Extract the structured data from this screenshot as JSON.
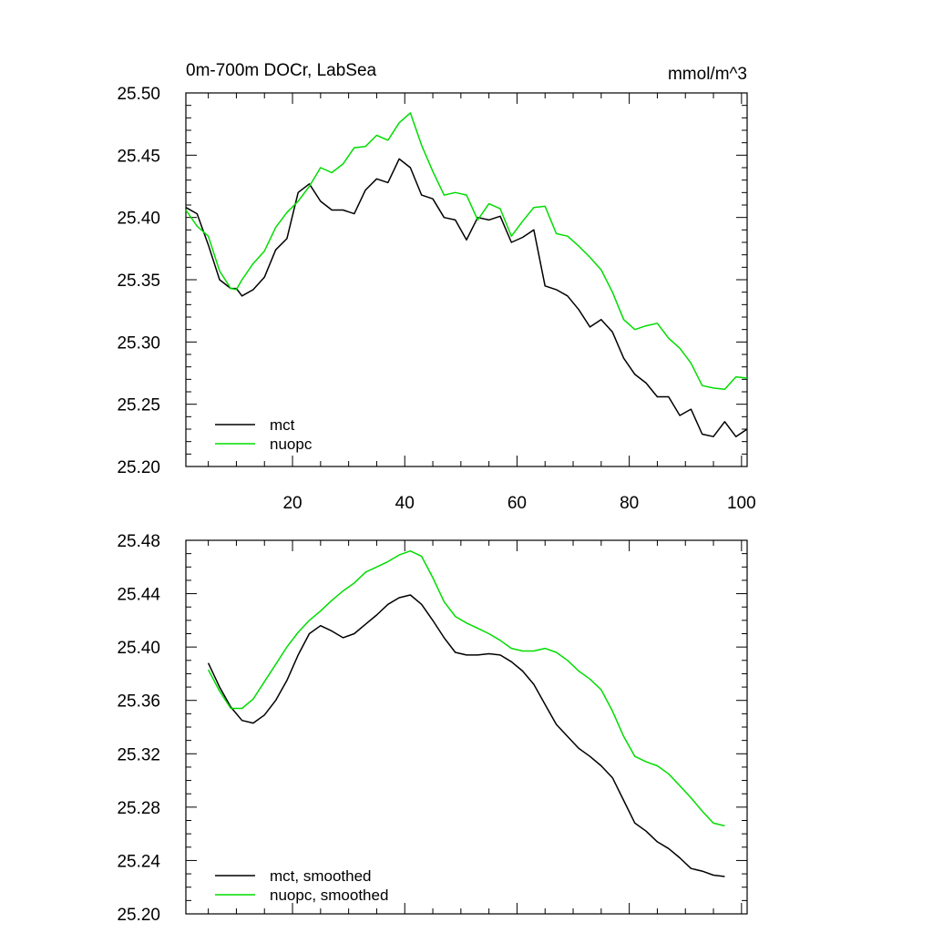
{
  "chart_data": [
    {
      "type": "line",
      "title": "0m-700m DOCr, LabSea",
      "units": "mmol/m^3",
      "xlabel": "",
      "ylabel": "",
      "xlim": [
        1,
        101
      ],
      "ylim": [
        25.2,
        25.5
      ],
      "x_ticks": [
        20,
        40,
        60,
        80,
        100
      ],
      "y_ticks": [
        25.2,
        25.25,
        25.3,
        25.35,
        25.4,
        25.45,
        25.5
      ],
      "y_tick_labels": [
        "25.20",
        "25.25",
        "25.30",
        "25.35",
        "25.40",
        "25.45",
        "25.50"
      ],
      "x_tick_labels": [
        "20",
        "40",
        "60",
        "80",
        "100"
      ],
      "legend_position": "bottom-left",
      "series": [
        {
          "name": "mct",
          "color": "#000000",
          "x": [
            1,
            3,
            5,
            7,
            9,
            10,
            11,
            13,
            15,
            17,
            19,
            21,
            23,
            25,
            27,
            29,
            31,
            33,
            35,
            37,
            39,
            41,
            43,
            45,
            47,
            49,
            51,
            53,
            55,
            57,
            59,
            61,
            63,
            65,
            67,
            69,
            71,
            73,
            75,
            77,
            79,
            81,
            83,
            85,
            87,
            89,
            91,
            93,
            95,
            97,
            99,
            101
          ],
          "values": [
            25.408,
            25.403,
            25.378,
            25.35,
            25.343,
            25.343,
            25.337,
            25.342,
            25.352,
            25.374,
            25.383,
            25.42,
            25.427,
            25.413,
            25.406,
            25.406,
            25.403,
            25.422,
            25.431,
            25.428,
            25.447,
            25.44,
            25.418,
            25.415,
            25.4,
            25.398,
            25.382,
            25.4,
            25.398,
            25.401,
            25.38,
            25.384,
            25.39,
            25.345,
            25.342,
            25.337,
            25.326,
            25.312,
            25.318,
            25.308,
            25.287,
            25.274,
            25.267,
            25.256,
            25.256,
            25.241,
            25.246,
            25.226,
            25.224,
            25.236,
            25.224,
            25.23
          ]
        },
        {
          "name": "nuopc",
          "color": "#00dd00",
          "x": [
            1,
            3,
            5,
            7,
            9,
            10,
            11,
            13,
            15,
            17,
            19,
            21,
            23,
            25,
            27,
            29,
            31,
            33,
            35,
            37,
            39,
            41,
            43,
            45,
            47,
            49,
            51,
            53,
            55,
            57,
            59,
            61,
            63,
            65,
            67,
            69,
            71,
            73,
            75,
            77,
            79,
            81,
            83,
            85,
            87,
            89,
            91,
            93,
            95,
            97,
            99,
            101
          ],
          "values": [
            25.406,
            25.393,
            25.385,
            25.357,
            25.343,
            25.342,
            25.35,
            25.363,
            25.373,
            25.392,
            25.404,
            25.413,
            25.425,
            25.44,
            25.436,
            25.443,
            25.456,
            25.457,
            25.466,
            25.462,
            25.476,
            25.484,
            25.458,
            25.437,
            25.418,
            25.42,
            25.418,
            25.398,
            25.411,
            25.407,
            25.385,
            25.397,
            25.408,
            25.409,
            25.387,
            25.385,
            25.377,
            25.368,
            25.358,
            25.34,
            25.318,
            25.31,
            25.313,
            25.315,
            25.303,
            25.295,
            25.283,
            25.265,
            25.263,
            25.262,
            25.272,
            25.271
          ]
        }
      ]
    },
    {
      "type": "line",
      "title": "",
      "xlabel": "",
      "ylabel": "",
      "xlim": [
        1,
        101
      ],
      "ylim": [
        25.2,
        25.48
      ],
      "x_ticks": [
        20,
        40,
        60,
        80,
        100
      ],
      "y_ticks": [
        25.2,
        25.24,
        25.28,
        25.32,
        25.36,
        25.4,
        25.44,
        25.48
      ],
      "y_tick_labels": [
        "25.20",
        "25.24",
        "25.28",
        "25.32",
        "25.36",
        "25.40",
        "25.44",
        "25.48"
      ],
      "x_tick_labels": [],
      "legend_position": "bottom-left",
      "series": [
        {
          "name": "mct, smoothed",
          "color": "#000000",
          "x": [
            5,
            7,
            9,
            11,
            13,
            15,
            17,
            19,
            21,
            23,
            25,
            27,
            29,
            31,
            33,
            35,
            37,
            39,
            41,
            43,
            45,
            47,
            49,
            51,
            53,
            55,
            57,
            59,
            61,
            63,
            65,
            67,
            69,
            71,
            73,
            75,
            77,
            79,
            81,
            83,
            85,
            87,
            89,
            91,
            93,
            95,
            97
          ],
          "values": [
            25.388,
            25.37,
            25.355,
            25.345,
            25.343,
            25.349,
            25.36,
            25.375,
            25.394,
            25.41,
            25.416,
            25.412,
            25.407,
            25.41,
            25.417,
            25.424,
            25.432,
            25.437,
            25.439,
            25.432,
            25.42,
            25.407,
            25.396,
            25.394,
            25.394,
            25.395,
            25.394,
            25.389,
            25.382,
            25.372,
            25.357,
            25.342,
            25.333,
            25.324,
            25.318,
            25.311,
            25.302,
            25.285,
            25.268,
            25.262,
            25.254,
            25.249,
            25.242,
            25.234,
            25.232,
            25.229,
            25.228
          ]
        },
        {
          "name": "nuopc, smoothed",
          "color": "#00dd00",
          "x": [
            5,
            7,
            9,
            11,
            13,
            15,
            17,
            19,
            21,
            23,
            25,
            27,
            29,
            31,
            33,
            35,
            37,
            39,
            41,
            43,
            45,
            47,
            49,
            51,
            53,
            55,
            57,
            59,
            61,
            63,
            65,
            67,
            69,
            71,
            73,
            75,
            77,
            79,
            81,
            83,
            85,
            87,
            89,
            91,
            93,
            95,
            97
          ],
          "values": [
            25.383,
            25.367,
            25.354,
            25.354,
            25.361,
            25.374,
            25.387,
            25.4,
            25.411,
            25.42,
            25.427,
            25.435,
            25.442,
            25.448,
            25.456,
            25.46,
            25.464,
            25.469,
            25.472,
            25.468,
            25.452,
            25.434,
            25.423,
            25.418,
            25.414,
            25.41,
            25.405,
            25.399,
            25.397,
            25.397,
            25.399,
            25.396,
            25.39,
            25.382,
            25.376,
            25.368,
            25.352,
            25.333,
            25.318,
            25.314,
            25.311,
            25.305,
            25.296,
            25.287,
            25.277,
            25.268,
            25.266
          ]
        }
      ]
    }
  ]
}
